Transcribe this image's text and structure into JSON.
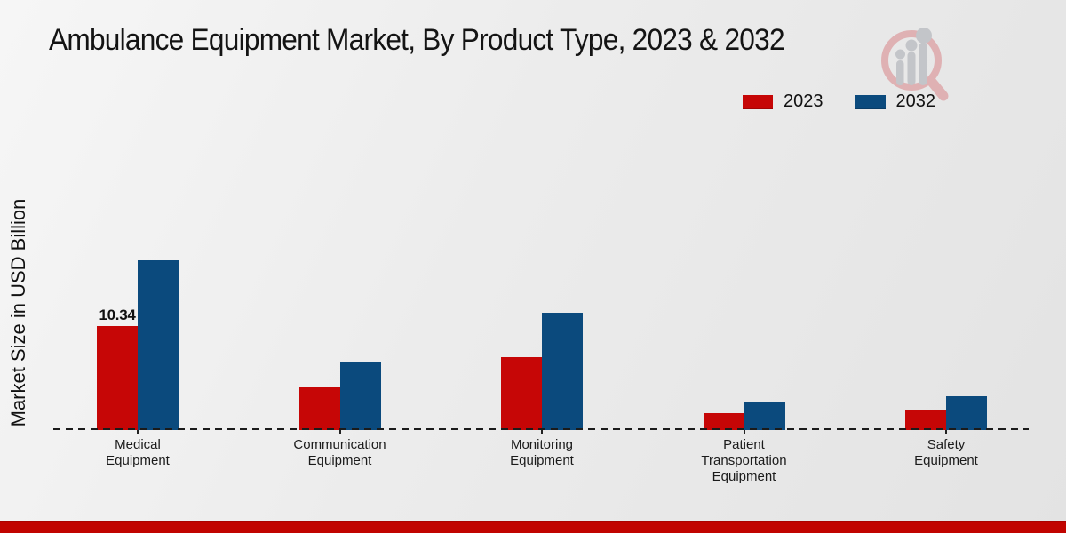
{
  "header": {
    "title": "Ambulance Equipment Market, By Product Type, 2023 & 2032"
  },
  "y_axis": {
    "label": "Market Size in USD Billion"
  },
  "legend": {
    "items": [
      {
        "label": "2023",
        "color": "#c60606"
      },
      {
        "label": "2032",
        "color": "#0b4a7d"
      }
    ]
  },
  "watermark": {
    "ring_color": "#dfb1b3",
    "bar_color": "#c3c5c9"
  },
  "footer": {
    "bar_color": "#c10400"
  },
  "chart_data": {
    "type": "bar",
    "title": "Ambulance Equipment Market, By Product Type, 2023 & 2032",
    "xlabel": "",
    "ylabel": "Market Size in USD Billion",
    "unit": "USD Billion",
    "categories": [
      "Medical Equipment",
      "Communication Equipment",
      "Monitoring Equipment",
      "Patient Transportation Equipment",
      "Safety Equipment"
    ],
    "category_label_lines": [
      [
        "Medical",
        "Equipment"
      ],
      [
        "Communication",
        "Equipment"
      ],
      [
        "Monitoring",
        "Equipment"
      ],
      [
        "Patient",
        "Transportation",
        "Equipment"
      ],
      [
        "Safety",
        "Equipment"
      ]
    ],
    "series": [
      {
        "name": "2023",
        "color": "#c60606",
        "values": [
          10.34,
          4.2,
          7.2,
          1.7,
          2.0
        ]
      },
      {
        "name": "2032",
        "color": "#0b4a7d",
        "values": [
          16.9,
          6.8,
          11.7,
          2.7,
          3.4
        ]
      }
    ],
    "annotations": [
      {
        "series": "2023",
        "category": "Medical Equipment",
        "text": "10.34"
      }
    ],
    "ylim": [
      0,
      18
    ],
    "grid": false,
    "legend_position": "top-right",
    "baseline": {
      "style": "dashed",
      "color": "#1b1b1b"
    }
  }
}
